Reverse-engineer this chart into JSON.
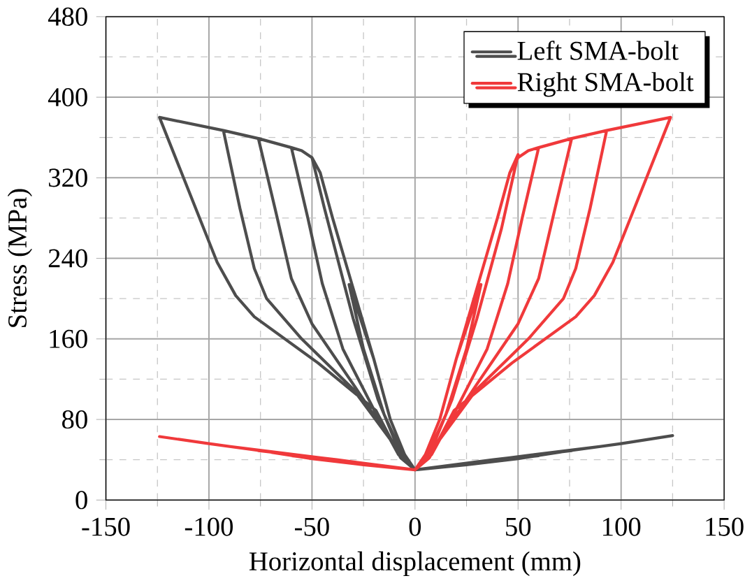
{
  "chart_data": {
    "type": "line",
    "xlabel": "Horizontal displacement (mm)",
    "ylabel": "Stress (MPa)",
    "xlim": [
      -150,
      150
    ],
    "ylim": [
      0,
      480
    ],
    "xticks": [
      -150,
      -100,
      -50,
      0,
      50,
      100,
      150
    ],
    "yticks": [
      0,
      80,
      160,
      240,
      320,
      400,
      480
    ],
    "grid": true,
    "legend": "top right",
    "marker": "none",
    "line_style": "solid",
    "series": [
      {
        "name": "Left SMA-bolt",
        "color": "#4d4d4d",
        "x": [
          0,
          -5,
          -12,
          -20,
          -32,
          -25,
          -15,
          -5,
          0,
          16,
          32,
          16,
          0,
          -5,
          -12,
          -20,
          -30,
          -40,
          -46,
          -50,
          -44,
          -30,
          -18,
          -8,
          0,
          25,
          50,
          25,
          0,
          -5,
          -12,
          -20,
          -30,
          -40,
          -46,
          -50,
          -55,
          -60,
          -52,
          -45,
          -35,
          -20,
          -8,
          0,
          30,
          60,
          30,
          0,
          -5,
          -12,
          -20,
          -30,
          -40,
          -46,
          -50,
          -55,
          -60,
          -76,
          -68,
          -60,
          -50,
          -30,
          -12,
          0,
          38,
          76,
          38,
          0,
          -5,
          -12,
          -20,
          -30,
          -40,
          -46,
          -50,
          -55,
          -60,
          -76,
          -93,
          -85,
          -78,
          -72,
          -55,
          -30,
          -12,
          0,
          46,
          93,
          46,
          0,
          -5,
          -12,
          -20,
          -30,
          -40,
          -46,
          -50,
          -55,
          -60,
          -76,
          -93,
          -124,
          -96,
          -87,
          -78,
          -47,
          -19,
          -7,
          0,
          25,
          50,
          75,
          100,
          125
        ],
        "values": [
          30,
          45,
          80,
          140,
          214,
          150,
          85,
          40,
          30,
          34,
          38,
          34,
          30,
          45,
          80,
          140,
          210,
          280,
          325,
          340,
          290,
          180,
          100,
          50,
          30,
          35,
          41,
          35,
          30,
          45,
          80,
          140,
          210,
          280,
          325,
          340,
          347,
          350,
          280,
          215,
          150,
          90,
          45,
          30,
          37,
          44,
          37,
          30,
          45,
          80,
          140,
          210,
          280,
          325,
          340,
          347,
          350,
          359,
          290,
          220,
          175,
          115,
          60,
          30,
          40,
          49,
          40,
          30,
          45,
          80,
          140,
          210,
          280,
          325,
          340,
          347,
          350,
          359,
          367,
          290,
          230,
          200,
          160,
          110,
          60,
          30,
          42,
          54,
          42,
          30,
          45,
          80,
          140,
          210,
          280,
          325,
          340,
          347,
          350,
          359,
          367,
          380,
          236,
          203,
          182,
          136,
          89,
          42,
          30,
          35,
          41,
          49,
          56,
          64
        ]
      },
      {
        "name": "Right SMA-bolt",
        "color": "#f0393b",
        "x": [
          0,
          5,
          12,
          20,
          32,
          25,
          15,
          5,
          0,
          -16,
          -32,
          -16,
          0,
          5,
          12,
          20,
          30,
          40,
          46,
          50,
          42,
          30,
          18,
          8,
          0,
          -25,
          -50,
          -25,
          0,
          5,
          12,
          20,
          30,
          40,
          46,
          50,
          55,
          60,
          52,
          45,
          35,
          20,
          8,
          0,
          -30,
          -60,
          -30,
          0,
          5,
          12,
          20,
          30,
          40,
          46,
          50,
          55,
          60,
          76,
          68,
          60,
          50,
          30,
          12,
          0,
          -38,
          -76,
          -38,
          0,
          5,
          12,
          20,
          30,
          40,
          46,
          50,
          55,
          60,
          76,
          93,
          85,
          78,
          72,
          55,
          30,
          12,
          0,
          -46,
          -93,
          -46,
          0,
          5,
          12,
          20,
          30,
          40,
          46,
          50,
          55,
          60,
          76,
          93,
          124,
          96,
          87,
          78,
          47,
          19,
          7,
          0,
          -25,
          -50,
          -75,
          -100,
          -124
        ],
        "values": [
          30,
          45,
          80,
          140,
          214,
          150,
          85,
          40,
          30,
          34,
          38,
          34,
          30,
          45,
          80,
          140,
          210,
          280,
          325,
          343,
          270,
          180,
          100,
          50,
          30,
          35,
          41,
          35,
          30,
          45,
          80,
          140,
          210,
          280,
          325,
          340,
          347,
          350,
          280,
          215,
          150,
          90,
          45,
          30,
          37,
          44,
          37,
          30,
          45,
          80,
          140,
          210,
          280,
          325,
          340,
          347,
          350,
          359,
          290,
          220,
          175,
          115,
          60,
          30,
          40,
          49,
          40,
          30,
          45,
          80,
          140,
          210,
          280,
          325,
          340,
          347,
          350,
          359,
          367,
          290,
          230,
          200,
          160,
          110,
          60,
          30,
          42,
          54,
          42,
          30,
          45,
          80,
          140,
          210,
          280,
          325,
          340,
          347,
          350,
          359,
          367,
          380,
          236,
          203,
          182,
          136,
          89,
          42,
          30,
          35,
          41,
          49,
          56,
          63
        ]
      }
    ]
  }
}
